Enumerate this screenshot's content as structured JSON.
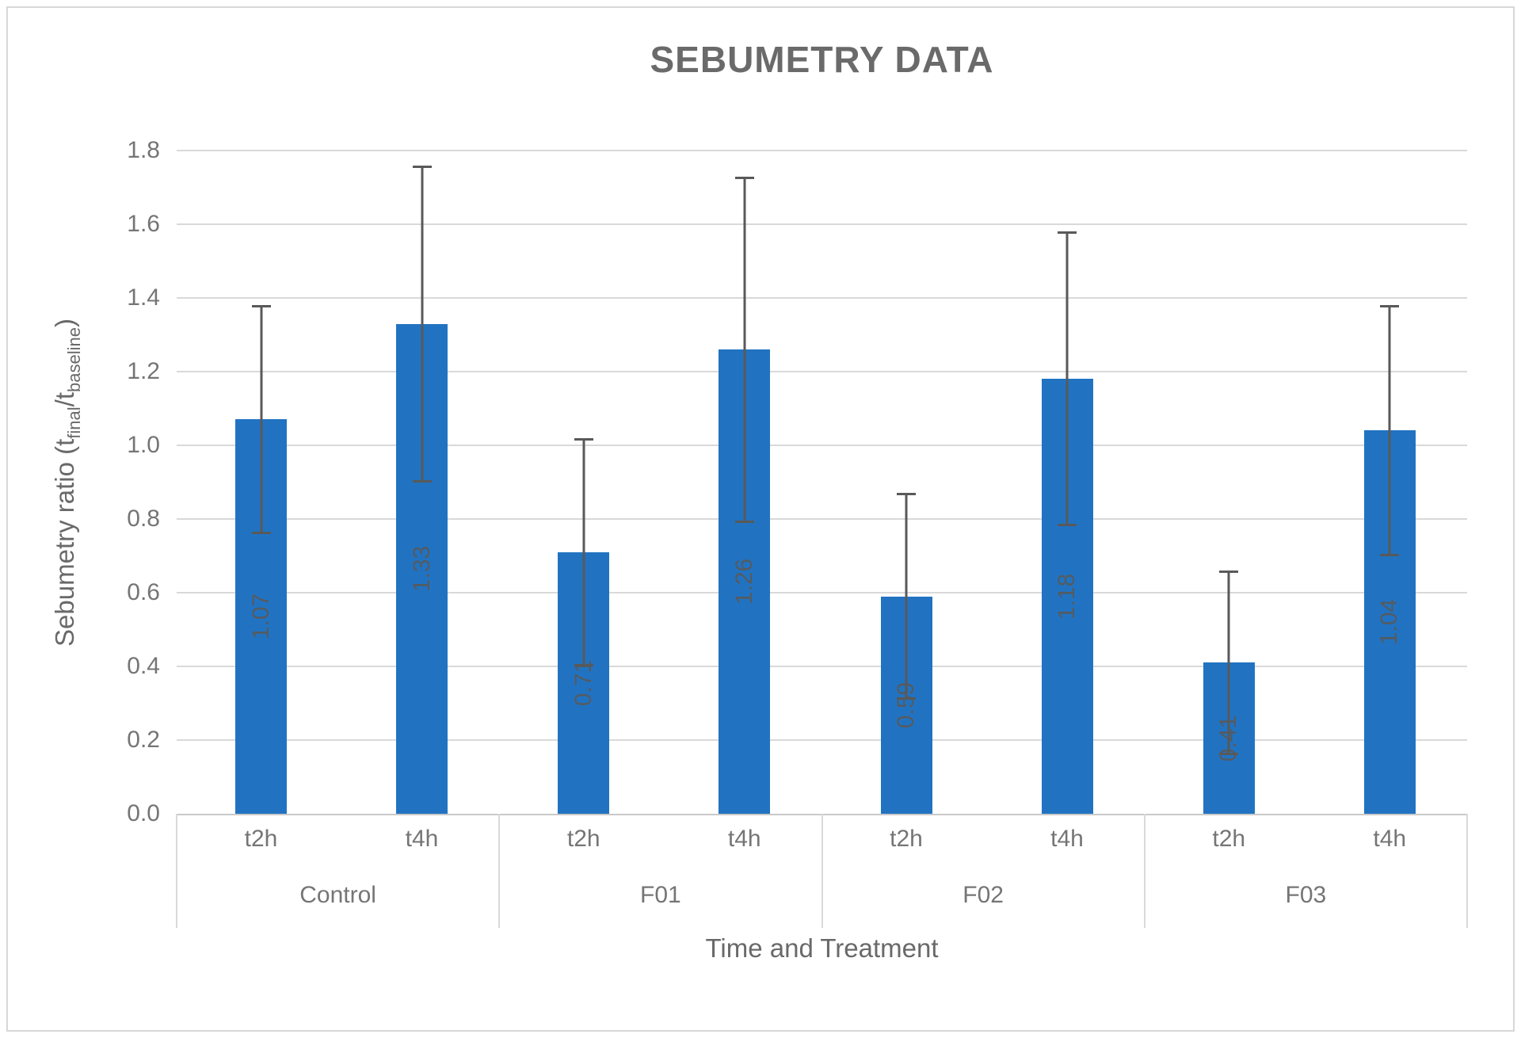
{
  "title": "SEBUMETRY DATA",
  "chart_data": {
    "type": "bar",
    "title": "SEBUMETRY DATA",
    "groups": [
      "Control",
      "F01",
      "F02",
      "F03"
    ],
    "time_points": [
      "t2h",
      "t4h"
    ],
    "categories": [
      "Control t2h",
      "Control t4h",
      "F01 t2h",
      "F01 t4h",
      "F02 t2h",
      "F02 t4h",
      "F03 t2h",
      "F03 t4h"
    ],
    "values": [
      1.07,
      1.33,
      0.71,
      1.26,
      0.59,
      1.18,
      0.41,
      1.04
    ],
    "data_labels": [
      "1.07",
      "1.33",
      "0.71",
      "1.26",
      "0.59",
      "1.18",
      "0.41",
      "1.04"
    ],
    "error_bars": [
      0.31,
      0.43,
      0.31,
      0.47,
      0.28,
      0.4,
      0.25,
      0.34
    ],
    "xlabel": "Time and Treatment",
    "ylabel": "Sebumetry ratio (t_final/t_baseline)",
    "ylim": [
      0.0,
      1.8
    ],
    "ytick_step": 0.2,
    "ytick_labels": [
      "0.0",
      "0.2",
      "0.4",
      "0.6",
      "0.8",
      "1.0",
      "1.2",
      "1.4",
      "1.6",
      "1.8"
    ],
    "grid": true,
    "legend": false
  },
  "y_axis_title": {
    "prefix": "Sebumetry ratio (t",
    "sub1": "final",
    "mid": "/t",
    "sub2": "baseline",
    "suffix": ")"
  },
  "x_axis_title": "Time and Treatment",
  "colors": {
    "bar": "#2173C2",
    "error_bar": "#595959",
    "bar_label": "#595959",
    "gridline": "#D9D9D9",
    "axis_text": "#757575",
    "title_text": "#6A6A6A"
  }
}
